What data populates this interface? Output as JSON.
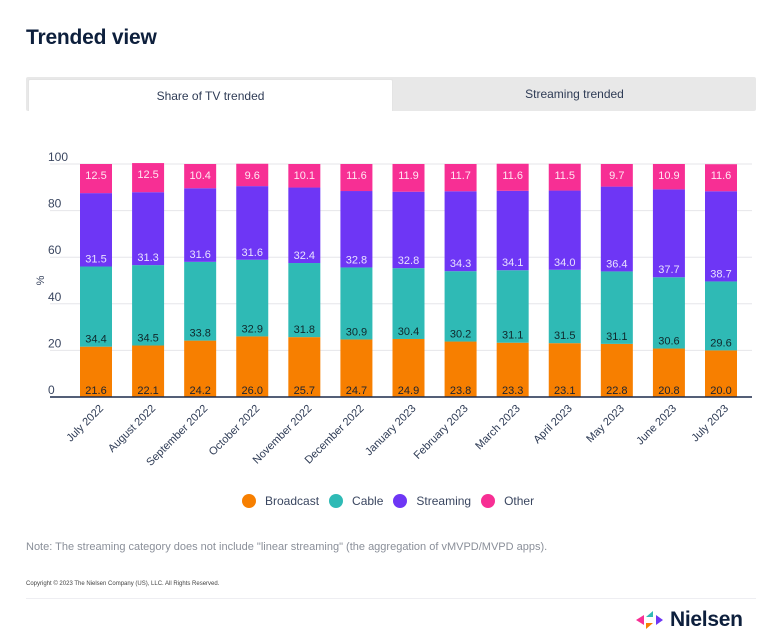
{
  "page": {
    "title": "Trended view",
    "tabs": [
      {
        "label": "Share of TV trended",
        "active": true
      },
      {
        "label": "Streaming trended",
        "active": false
      }
    ],
    "note": "Note: The streaming category does not include \"linear streaming\" (the aggregation of vMVPD/MVPD apps).",
    "copyright": "Copyright © 2023 The Nielsen Company (US), LLC. All Rights Reserved.",
    "brand": {
      "name": "Nielsen",
      "icon": "nielsen-arrows-logo"
    }
  },
  "colors": {
    "Broadcast": "#f77f00",
    "Cable": "#2fbab5",
    "Streaming": "#6e36f5",
    "Other": "#f72f94",
    "axis": "#1b2a4a",
    "grid": "#e6e6ea"
  },
  "chart_data": {
    "type": "bar",
    "stacked": true,
    "title": "",
    "xlabel": "",
    "ylabel": "%",
    "ylim": [
      0,
      100
    ],
    "yticks": [
      0,
      20,
      40,
      60,
      80,
      100
    ],
    "grid": true,
    "legend_position": "bottom-center",
    "categories": [
      "July 2022",
      "August 2022",
      "September 2022",
      "October 2022",
      "November 2022",
      "December 2022",
      "January 2023",
      "February 2023",
      "March 2023",
      "April 2023",
      "May 2023",
      "June 2023",
      "July 2023"
    ],
    "series": [
      {
        "name": "Broadcast",
        "values": [
          21.6,
          22.1,
          24.2,
          26.0,
          25.7,
          24.7,
          24.9,
          23.8,
          23.3,
          23.1,
          22.8,
          20.8,
          20.0
        ]
      },
      {
        "name": "Cable",
        "values": [
          34.4,
          34.5,
          33.8,
          32.9,
          31.8,
          30.9,
          30.4,
          30.2,
          31.1,
          31.5,
          31.1,
          30.6,
          29.6
        ]
      },
      {
        "name": "Streaming",
        "values": [
          31.5,
          31.3,
          31.6,
          31.6,
          32.4,
          32.8,
          32.8,
          34.3,
          34.1,
          34.0,
          36.4,
          37.7,
          38.7
        ]
      },
      {
        "name": "Other",
        "values": [
          12.5,
          12.5,
          10.4,
          9.6,
          10.1,
          11.6,
          11.9,
          11.7,
          11.6,
          11.5,
          9.7,
          10.9,
          11.6
        ]
      }
    ]
  }
}
